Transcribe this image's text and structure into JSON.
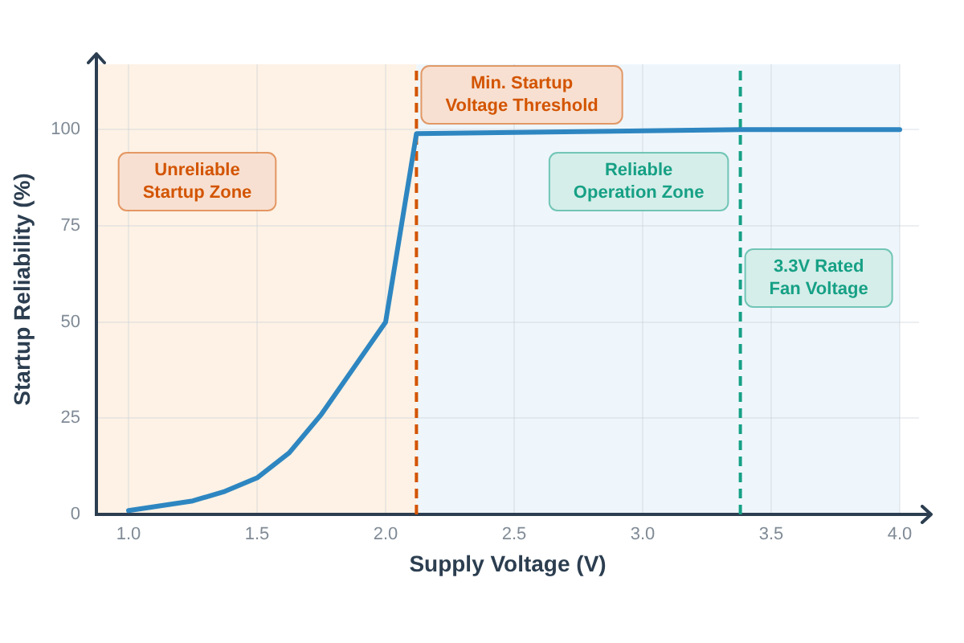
{
  "chart_data": {
    "type": "line",
    "xlabel": "Supply Voltage (V)",
    "ylabel": "Startup Reliability (%)",
    "x": [
      1.0,
      1.25,
      1.375,
      1.5,
      1.625,
      1.75,
      1.875,
      2.0,
      2.12,
      3.38,
      4.0
    ],
    "series": [
      {
        "color": "#2e86c1",
        "values": [
          1,
          3.5,
          6,
          9.5,
          16,
          26,
          38,
          50,
          99,
          100,
          100
        ]
      }
    ],
    "xlim": [
      0.875,
      4.075
    ],
    "xticks": [
      {
        "value": 1,
        "label": "1.0"
      },
      1.5,
      {
        "value": 2,
        "label": "2.0"
      },
      2.5,
      {
        "value": 3,
        "label": "3.0"
      },
      3.5,
      {
        "value": 4,
        "label": "4.0"
      }
    ],
    "ylim": [
      0,
      117
    ],
    "yticks": [
      0,
      25,
      50,
      75,
      100
    ],
    "grid": true,
    "legend": false,
    "marker": "none",
    "bands": [
      {
        "axis": "x",
        "from": 0.875,
        "to": 2.12,
        "label": "Unreliable Startup Zone",
        "color": "#fdf2e5"
      },
      {
        "axis": "x",
        "from": 2.12,
        "to": 4.0,
        "label": "Reliable Operation Zone",
        "color": "#eef6fb"
      }
    ],
    "ref_lines": [
      {
        "axis": "x",
        "value": 2.12,
        "label": "Min. Startup Voltage Threshold",
        "color": "#d35400",
        "line_style": "dashed"
      },
      {
        "axis": "x",
        "value": 3.38,
        "label": "3.3V Rated Fan Voltage",
        "color": "#16a085",
        "line_style": "dashed"
      }
    ]
  }
}
